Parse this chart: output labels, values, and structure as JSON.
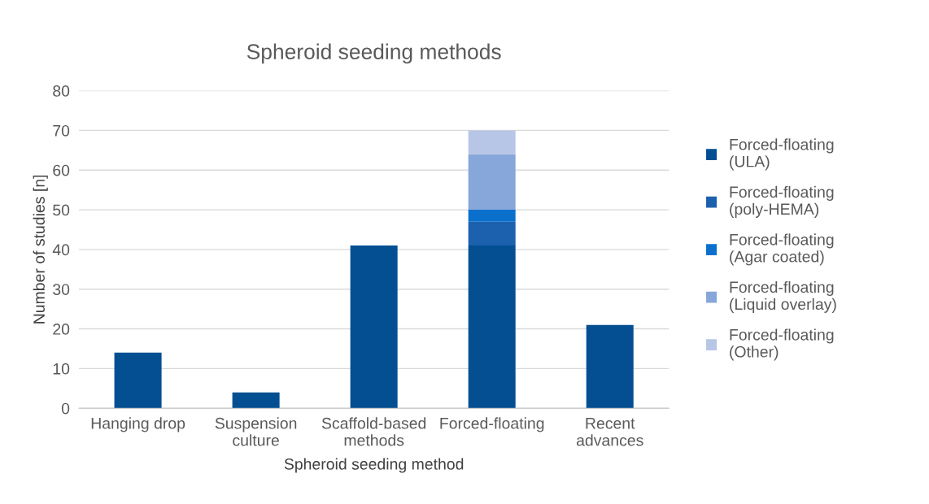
{
  "chart_data": {
    "type": "bar",
    "title": "Spheroid seeding methods",
    "xlabel": "Spheroid seeding method",
    "ylabel": "Number of studies [n]",
    "categories": [
      "Hanging drop",
      "Suspension\nculture",
      "Scaffold-based\nmethods",
      "Forced-floating",
      "Recent\nadvances"
    ],
    "stacked": true,
    "ylim": [
      0,
      80
    ],
    "yticks": [
      0,
      10,
      20,
      30,
      40,
      50,
      60,
      70,
      80
    ],
    "grid": "y",
    "legend": "right",
    "series": [
      {
        "name": "Forced-floating\n(ULA)",
        "color": "#034f92",
        "values": [
          14,
          4,
          41,
          41,
          21
        ]
      },
      {
        "name": "Forced-floating\n(poly-HEMA)",
        "color": "#1c61ad",
        "values": [
          null,
          null,
          null,
          6,
          null
        ]
      },
      {
        "name": "Forced-floating\n(Agar coated)",
        "color": "#0a70cc",
        "values": [
          null,
          null,
          null,
          3,
          null
        ]
      },
      {
        "name": "Forced-floating\n(Liquid overlay)",
        "color": "#87a6d9",
        "values": [
          null,
          null,
          null,
          14,
          null
        ]
      },
      {
        "name": "Forced-floating\n(Other)",
        "color": "#b7c6e6",
        "values": [
          null,
          null,
          null,
          6,
          null
        ]
      }
    ]
  }
}
